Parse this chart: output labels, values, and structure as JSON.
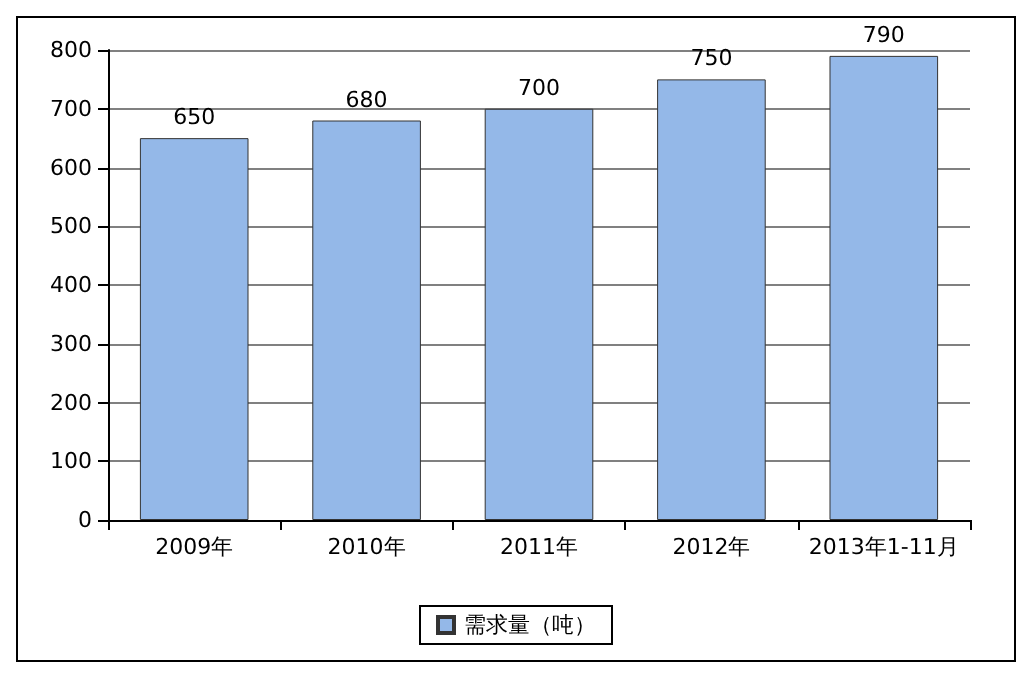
{
  "chart_data": {
    "type": "bar",
    "categories": [
      "2009年",
      "2010年",
      "2011年",
      "2012年",
      "2013年1-11月"
    ],
    "series": [
      {
        "name": "需求量（吨）",
        "color": "#94b8e8",
        "values": [
          650,
          680,
          700,
          750,
          790
        ]
      }
    ],
    "ylim": [
      0,
      800
    ],
    "yticks": [
      0,
      100,
      200,
      300,
      400,
      500,
      600,
      700,
      800
    ],
    "grid": "y",
    "legend": "bottom",
    "data_labels": true
  }
}
